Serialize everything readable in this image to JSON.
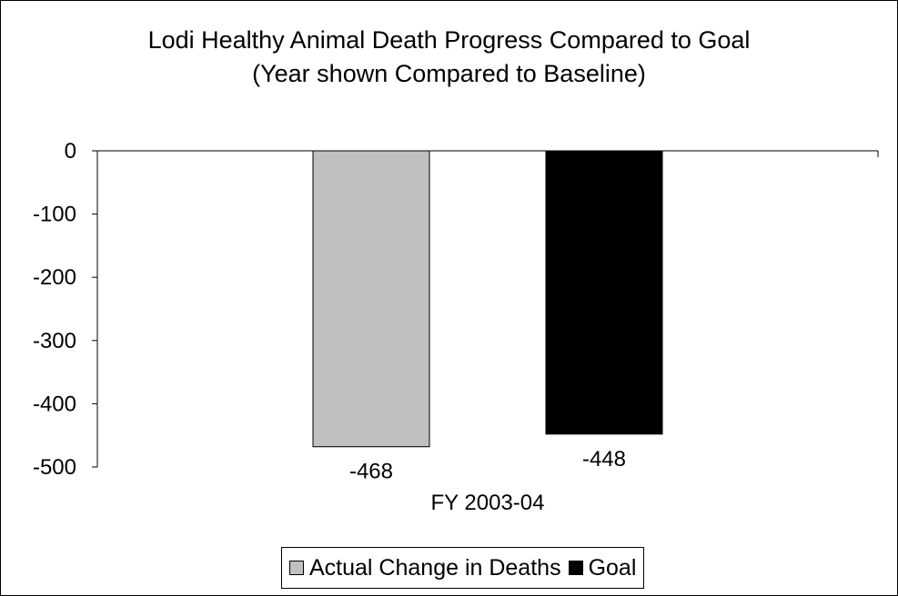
{
  "chart_data": {
    "type": "bar",
    "title_line1": "Lodi Healthy Animal Death Progress Compared to Goal",
    "title_line2": "(Year shown Compared to Baseline)",
    "categories": [
      "FY 2003-04"
    ],
    "series": [
      {
        "name": "Actual Change in Deaths",
        "values": [
          -468
        ],
        "color": "#c0c0c0"
      },
      {
        "name": "Goal",
        "values": [
          -448
        ],
        "color": "#000000"
      }
    ],
    "data_labels": [
      "-468",
      "-448"
    ],
    "ylim": [
      -500,
      0
    ],
    "yticks": [
      0,
      -100,
      -200,
      -300,
      -400,
      -500
    ],
    "ytick_labels": [
      "0",
      "-100",
      "-200",
      "-300",
      "-400",
      "-500"
    ],
    "grid": false,
    "legend_position": "bottom"
  }
}
